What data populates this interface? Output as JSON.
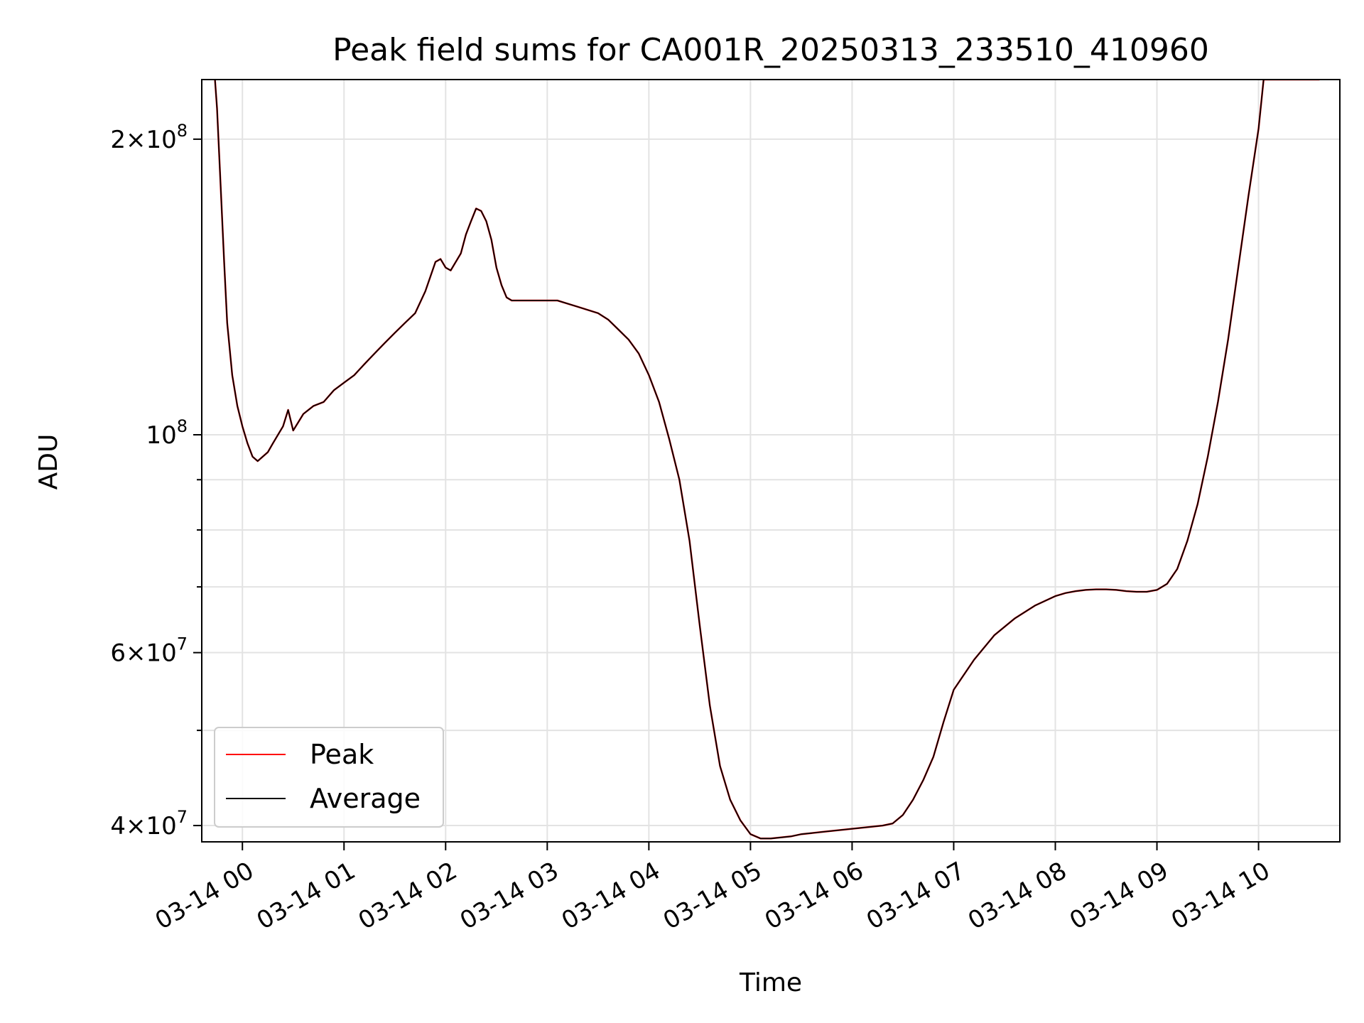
{
  "chart_data": {
    "type": "line",
    "title": "Peak field sums for CA001R_20250313_233510_410960",
    "xlabel": "Time",
    "ylabel": "ADU",
    "x_unit": "hours after 03-14 00:00",
    "xlim": [
      -0.4,
      10.8
    ],
    "ylim": [
      38500000,
      230000000
    ],
    "y_scale": "log",
    "grid": true,
    "legend_position": "lower-left",
    "x_ticks": [
      {
        "value": 0,
        "label": "03-14 00"
      },
      {
        "value": 1,
        "label": "03-14 01"
      },
      {
        "value": 2,
        "label": "03-14 02"
      },
      {
        "value": 3,
        "label": "03-14 03"
      },
      {
        "value": 4,
        "label": "03-14 04"
      },
      {
        "value": 5,
        "label": "03-14 05"
      },
      {
        "value": 6,
        "label": "03-14 06"
      },
      {
        "value": 7,
        "label": "03-14 07"
      },
      {
        "value": 8,
        "label": "03-14 08"
      },
      {
        "value": 9,
        "label": "03-14 09"
      },
      {
        "value": 10,
        "label": "03-14 10"
      }
    ],
    "y_major_ticks": [
      {
        "value": 40000000,
        "mantissa": "4",
        "exponent": "7"
      },
      {
        "value": 60000000,
        "mantissa": "6",
        "exponent": "7"
      },
      {
        "value": 100000000,
        "mantissa": "",
        "exponent": "8"
      },
      {
        "value": 200000000,
        "mantissa": "2",
        "exponent": "8"
      }
    ],
    "y_minor_ticks": [
      50000000,
      70000000,
      80000000,
      90000000
    ],
    "x": [
      -0.27,
      -0.25,
      -0.22,
      -0.18,
      -0.15,
      -0.1,
      -0.05,
      0.0,
      0.05,
      0.1,
      0.15,
      0.2,
      0.25,
      0.3,
      0.35,
      0.4,
      0.45,
      0.5,
      0.55,
      0.6,
      0.65,
      0.7,
      0.8,
      0.9,
      1.0,
      1.1,
      1.2,
      1.3,
      1.4,
      1.5,
      1.6,
      1.7,
      1.8,
      1.9,
      1.95,
      2.0,
      2.05,
      2.1,
      2.15,
      2.2,
      2.25,
      2.3,
      2.35,
      2.4,
      2.45,
      2.5,
      2.55,
      2.6,
      2.65,
      2.7,
      2.75,
      2.8,
      2.85,
      2.9,
      3.0,
      3.1,
      3.2,
      3.3,
      3.4,
      3.5,
      3.6,
      3.7,
      3.8,
      3.9,
      4.0,
      4.1,
      4.2,
      4.3,
      4.4,
      4.5,
      4.6,
      4.7,
      4.8,
      4.9,
      5.0,
      5.1,
      5.2,
      5.3,
      5.4,
      5.5,
      5.6,
      5.7,
      5.8,
      5.9,
      6.0,
      6.1,
      6.2,
      6.3,
      6.4,
      6.5,
      6.6,
      6.7,
      6.8,
      6.9,
      7.0,
      7.2,
      7.4,
      7.6,
      7.8,
      8.0,
      8.1,
      8.2,
      8.3,
      8.4,
      8.5,
      8.6,
      8.7,
      8.8,
      8.9,
      9.0,
      9.1,
      9.2,
      9.3,
      9.4,
      9.5,
      9.6,
      9.7,
      9.8,
      9.9,
      10.0,
      10.05,
      10.1,
      10.15,
      10.2,
      10.25,
      10.3,
      10.35,
      10.4,
      10.45,
      10.5,
      10.55,
      10.6
    ],
    "series": [
      {
        "name": "Average",
        "color": "#000000",
        "values": [
          230000000,
          215000000,
          185000000,
          150000000,
          130000000,
          115000000,
          107000000,
          102000000,
          98000000,
          95000000,
          94000000,
          95000000,
          96000000,
          98000000,
          100000000,
          102000000,
          106000000,
          101000000,
          103000000,
          105000000,
          106000000,
          107000000,
          108000000,
          111000000,
          113000000,
          115000000,
          118000000,
          121000000,
          124000000,
          127000000,
          130000000,
          133000000,
          140000000,
          150000000,
          151000000,
          148000000,
          147000000,
          150000000,
          153000000,
          160000000,
          165000000,
          170000000,
          169000000,
          165000000,
          158000000,
          148000000,
          142000000,
          138000000,
          137000000,
          137000000,
          137000000,
          137000000,
          137000000,
          137000000,
          137000000,
          137000000,
          136000000,
          135000000,
          134000000,
          133000000,
          131000000,
          128000000,
          125000000,
          121000000,
          115000000,
          108000000,
          99000000,
          90000000,
          78000000,
          64000000,
          53000000,
          46000000,
          42500000,
          40500000,
          39200000,
          38800000,
          38800000,
          38900000,
          39000000,
          39200000,
          39300000,
          39400000,
          39500000,
          39600000,
          39700000,
          39800000,
          39900000,
          40000000,
          40200000,
          41000000,
          42500000,
          44500000,
          47000000,
          51000000,
          55000000,
          59000000,
          62500000,
          65000000,
          67000000,
          68500000,
          69000000,
          69300000,
          69500000,
          69600000,
          69600000,
          69500000,
          69300000,
          69200000,
          69200000,
          69500000,
          70500000,
          73000000,
          78000000,
          85000000,
          95000000,
          108000000,
          125000000,
          148000000,
          175000000,
          205000000,
          230000000,
          230000000,
          230000000,
          230000000,
          230000000,
          230000000,
          230000000,
          230000000,
          230000000,
          230000000,
          230000000,
          230000000
        ]
      },
      {
        "name": "Peak",
        "color": "#ff0000",
        "values": [
          230000000,
          215000000,
          185000000,
          150000000,
          130000000,
          115000000,
          107000000,
          102000000,
          98000000,
          95000000,
          94000000,
          95000000,
          96000000,
          98000000,
          100000000,
          102000000,
          106000000,
          101000000,
          103000000,
          105000000,
          106000000,
          107000000,
          108000000,
          111000000,
          113000000,
          115000000,
          118000000,
          121000000,
          124000000,
          127000000,
          130000000,
          133000000,
          140000000,
          150000000,
          151000000,
          148000000,
          147000000,
          150000000,
          153000000,
          160000000,
          165000000,
          170000000,
          169000000,
          165000000,
          158000000,
          148000000,
          142000000,
          138000000,
          137000000,
          137000000,
          137000000,
          137000000,
          137000000,
          137000000,
          137000000,
          137000000,
          136000000,
          135000000,
          134000000,
          133000000,
          131000000,
          128000000,
          125000000,
          121000000,
          115000000,
          108000000,
          99000000,
          90000000,
          78000000,
          64000000,
          53000000,
          46000000,
          42500000,
          40500000,
          39200000,
          38800000,
          38800000,
          38900000,
          39000000,
          39200000,
          39300000,
          39400000,
          39500000,
          39600000,
          39700000,
          39800000,
          39900000,
          40000000,
          40200000,
          41000000,
          42500000,
          44500000,
          47000000,
          51000000,
          55000000,
          59000000,
          62500000,
          65000000,
          67000000,
          68500000,
          69000000,
          69300000,
          69500000,
          69600000,
          69600000,
          69500000,
          69300000,
          69200000,
          69200000,
          69500000,
          70500000,
          73000000,
          78000000,
          85000000,
          95000000,
          108000000,
          125000000,
          148000000,
          175000000,
          205000000,
          230000000,
          230000000,
          230000000,
          230000000,
          230000000,
          230000000,
          230000000,
          230000000,
          230000000,
          230000000,
          230000000,
          230000000
        ]
      }
    ],
    "legend": [
      {
        "label": "Peak",
        "color": "#ff0000"
      },
      {
        "label": "Average",
        "color": "#000000"
      }
    ]
  }
}
